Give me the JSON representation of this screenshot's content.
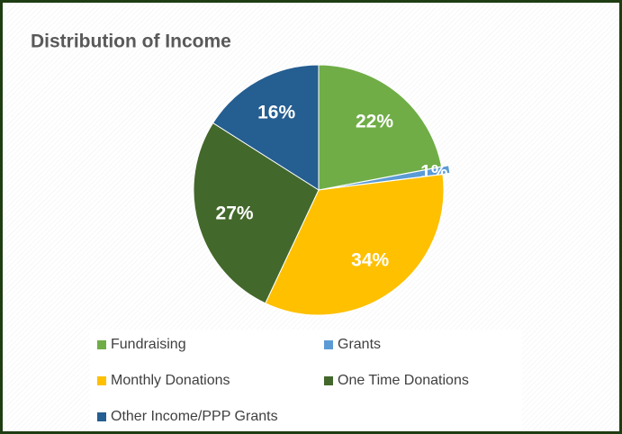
{
  "chart_data": {
    "type": "pie",
    "title": "Distribution of Income",
    "categories": [
      "Fundraising",
      "Grants",
      "Monthly Donations",
      "One Time Donations",
      "Other Income/PPP Grants"
    ],
    "values": [
      22,
      1,
      34,
      27,
      16
    ],
    "value_labels": [
      "22%",
      "1%",
      "34%",
      "27%",
      "16%"
    ],
    "colors": [
      "#70ad47",
      "#5b9bd5",
      "#ffc000",
      "#43682b",
      "#255e91"
    ],
    "legend": "bottom"
  }
}
